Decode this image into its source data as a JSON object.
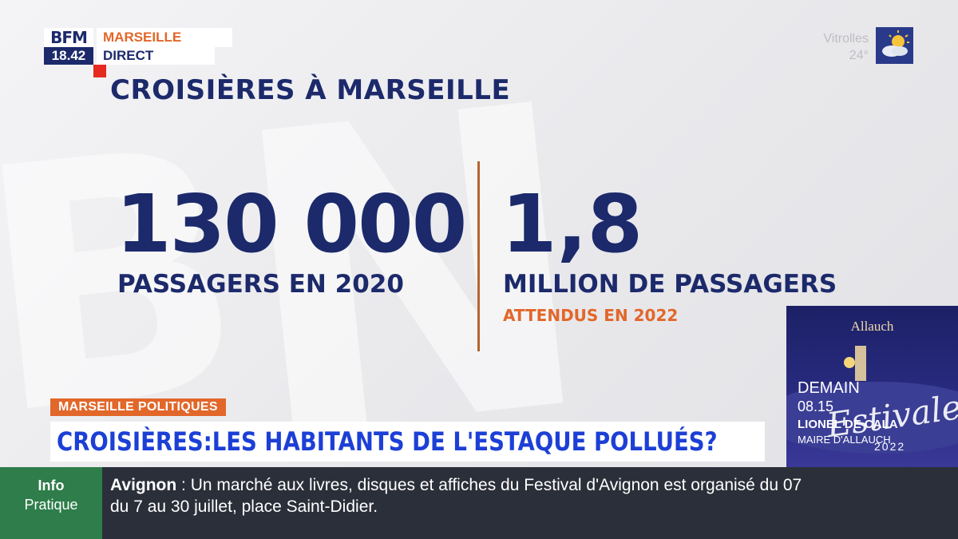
{
  "channel": {
    "logo": "BFM",
    "time": "18.42",
    "city": "MARSEILLE",
    "status": "DIRECT"
  },
  "weather": {
    "location": "Vitrolles",
    "temperature": "24°",
    "icon": "partly-cloudy-icon"
  },
  "graphic": {
    "headline": "CROISIÈRES À MARSEILLE",
    "stat1": {
      "value": "130 000",
      "label": "PASSAGERS EN 2020"
    },
    "stat2": {
      "value": "1,8",
      "label": "MILLION DE PASSAGERS",
      "note": "ATTENDUS EN 2022"
    }
  },
  "promo": {
    "place": "Allauch",
    "event": "Estivales",
    "year": "2022",
    "day": "DEMAIN",
    "hour": "08.15",
    "guest": "LIONEL DE CALA",
    "role": "MAIRE D'ALLAUCH"
  },
  "lower_third": {
    "tag": "MARSEILLE POLITIQUES",
    "title": "CROISIÈRES:LES HABITANTS DE L'ESTAQUE POLLUÉS?"
  },
  "ticker": {
    "box_line1": "Info",
    "box_line2": "Pratique",
    "city": "Avignon",
    "separator": " : ",
    "text1": "Un marché aux livres, disques et affiches du Festival d'Avignon est organisé du 07",
    "text2": "du 7 au 30 juillet, place Saint-Didier."
  },
  "colors": {
    "navy": "#1c2a6b",
    "orange": "#e2672a",
    "red": "#e52a20",
    "blue_title": "#1c3fd6",
    "ticker_bg": "#2b2f39",
    "info_green": "#2e7d4a"
  }
}
